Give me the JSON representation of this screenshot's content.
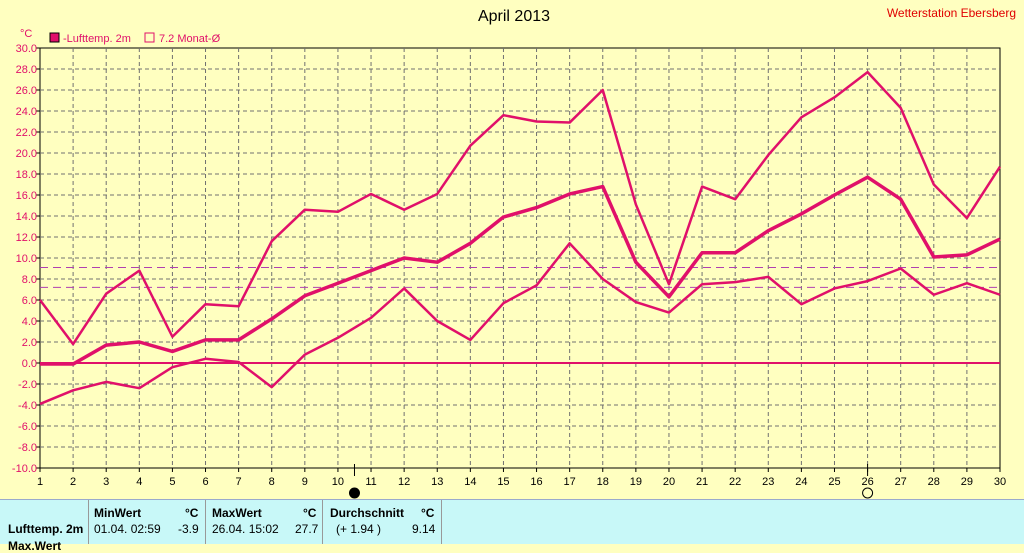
{
  "header": {
    "title": "April 2013",
    "station": "Wetterstation Ebersberg",
    "unit": "°C"
  },
  "legend": [
    {
      "label": "-Lufttemp. 2m",
      "filled": true,
      "color": "#e0106a"
    },
    {
      "label": "7.2 Monat-Ø",
      "filled": false,
      "color": "#e0106a"
    }
  ],
  "colors": {
    "series": "#e0106a",
    "grid": "#707070",
    "background": "#ffffc0",
    "footer_bg": "#c8f8f8",
    "title": "#000000",
    "station": "#e00000"
  },
  "chart_data": {
    "type": "line",
    "title": "April 2013",
    "ylabel": "°C",
    "ylim": [
      -10,
      30
    ],
    "xlim": [
      1,
      30
    ],
    "y_ticks": [
      "30.0",
      "28.0",
      "26.0",
      "24.0",
      "22.0",
      "20.0",
      "18.0",
      "16.0",
      "14.0",
      "12.0",
      "10.0",
      "8.0",
      "6.0",
      "4.0",
      "2.0",
      "0.0",
      "-2.0",
      "-4.0",
      "-6.0",
      "-8.0",
      "-10.0"
    ],
    "x_ticks": [
      "1",
      "2",
      "3",
      "4",
      "5",
      "6",
      "7",
      "8",
      "9",
      "10",
      "11",
      "12",
      "13",
      "14",
      "15",
      "16",
      "17",
      "18",
      "19",
      "20",
      "21",
      "22",
      "23",
      "24",
      "25",
      "26",
      "27",
      "28",
      "29",
      "30"
    ],
    "grid": true,
    "reference_lines": [
      {
        "label": "7.2 Monat-Ø",
        "value": 7.2,
        "dashed": true
      },
      {
        "value": 9.1,
        "dashed": true
      },
      {
        "value": 0,
        "dashed": false
      }
    ],
    "series": [
      {
        "name": "Max",
        "width": 2.5,
        "values": [
          6.0,
          1.8,
          6.6,
          8.8,
          2.5,
          5.6,
          5.4,
          11.6,
          14.6,
          14.4,
          16.1,
          14.6,
          16.1,
          20.7,
          23.6,
          23.0,
          22.9,
          26.0,
          15.1,
          7.5,
          16.8,
          15.6,
          19.8,
          23.4,
          25.3,
          27.7,
          24.3,
          17.0,
          13.8,
          18.7
        ]
      },
      {
        "name": "Mittel",
        "width": 3.5,
        "values": [
          -0.1,
          -0.1,
          1.7,
          2.0,
          1.1,
          2.2,
          2.2,
          4.2,
          6.4,
          7.6,
          8.8,
          10.0,
          9.6,
          11.4,
          13.9,
          14.8,
          16.1,
          16.8,
          9.6,
          6.3,
          10.5,
          10.5,
          12.6,
          14.2,
          16.0,
          17.7,
          15.6,
          10.1,
          10.3,
          11.8
        ]
      },
      {
        "name": "Min",
        "width": 2.5,
        "values": [
          -3.9,
          -2.6,
          -1.8,
          -2.4,
          -0.4,
          0.4,
          0.1,
          -2.3,
          0.8,
          2.4,
          4.3,
          7.1,
          4.0,
          2.2,
          5.7,
          7.4,
          11.4,
          8.0,
          5.8,
          4.8,
          7.5,
          7.7,
          8.2,
          5.6,
          7.1,
          7.8,
          9.0,
          6.5,
          7.6,
          6.5
        ]
      }
    ],
    "markers": [
      {
        "day": 10.5,
        "symbol": "new-moon",
        "label": "●"
      },
      {
        "day": 26,
        "symbol": "full-moon",
        "label": "○"
      }
    ]
  },
  "footer": {
    "row_label": "Lufttemp. 2m",
    "row2_label": "Max.Wert",
    "min": {
      "header": "MinWert",
      "unit": "°C",
      "date": "01.04.  02:59",
      "value": "-3.9"
    },
    "max": {
      "header": "MaxWert",
      "unit": "°C",
      "date": "26.04.  15:02",
      "value": "27.7"
    },
    "avg": {
      "header": "Durchschnitt",
      "unit": "°C",
      "delta": "(+ 1.94 )",
      "value": "9.14"
    }
  }
}
